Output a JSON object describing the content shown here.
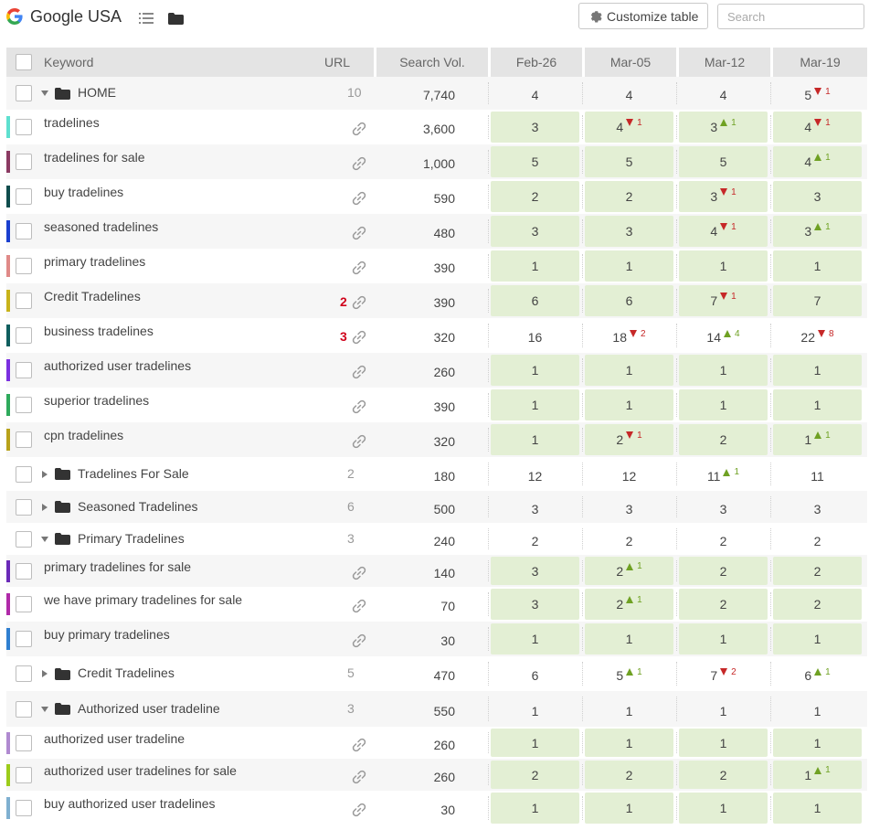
{
  "header": {
    "title": "Google USA",
    "customize_label": "Customize table",
    "search_placeholder": "Search"
  },
  "columns": {
    "keyword": "Keyword",
    "url": "URL",
    "volume": "Search Vol.",
    "dates": [
      "Feb-26",
      "Mar-05",
      "Mar-12",
      "Mar-19"
    ]
  },
  "colors": {
    "rank_highlight": "#e3efd4",
    "up": "#6fa123",
    "down": "#c62828",
    "url_alert": "#d0021b"
  },
  "rows": [
    {
      "type": "group",
      "name": "HOME",
      "expanded": true,
      "url_count": "10",
      "volume": "7,740",
      "ranks": [
        {
          "v": "4"
        },
        {
          "v": "4"
        },
        {
          "v": "4"
        },
        {
          "v": "5",
          "d": "down",
          "c": "1"
        }
      ]
    },
    {
      "type": "kw",
      "name": "tradelines",
      "color": "#5ee0cf",
      "url_count": "",
      "volume": "3,600",
      "hl": true,
      "ranks": [
        {
          "v": "3"
        },
        {
          "v": "4",
          "d": "down",
          "c": "1"
        },
        {
          "v": "3",
          "d": "up",
          "c": "1"
        },
        {
          "v": "4",
          "d": "down",
          "c": "1"
        }
      ]
    },
    {
      "type": "kw",
      "name": "tradelines for sale",
      "color": "#8b3a62",
      "url_count": "",
      "volume": "1,000",
      "hl": true,
      "ranks": [
        {
          "v": "5"
        },
        {
          "v": "5"
        },
        {
          "v": "5"
        },
        {
          "v": "4",
          "d": "up",
          "c": "1"
        }
      ]
    },
    {
      "type": "kw",
      "name": "buy tradelines",
      "color": "#0f4c4c",
      "url_count": "",
      "volume": "590",
      "hl": true,
      "ranks": [
        {
          "v": "2"
        },
        {
          "v": "2"
        },
        {
          "v": "3",
          "d": "down",
          "c": "1"
        },
        {
          "v": "3"
        }
      ]
    },
    {
      "type": "kw",
      "name": "seasoned tradelines",
      "color": "#1a3fcf",
      "url_count": "",
      "volume": "480",
      "hl": true,
      "ranks": [
        {
          "v": "3"
        },
        {
          "v": "3"
        },
        {
          "v": "4",
          "d": "down",
          "c": "1"
        },
        {
          "v": "3",
          "d": "up",
          "c": "1"
        }
      ]
    },
    {
      "type": "kw",
      "name": "primary tradelines",
      "color": "#e08a88",
      "url_count": "",
      "volume": "390",
      "hl": true,
      "ranks": [
        {
          "v": "1"
        },
        {
          "v": "1"
        },
        {
          "v": "1"
        },
        {
          "v": "1"
        }
      ]
    },
    {
      "type": "kw",
      "name": "Credit Tradelines",
      "color": "#c8b31a",
      "url_count": "2",
      "volume": "390",
      "hl": true,
      "ranks": [
        {
          "v": "6"
        },
        {
          "v": "6"
        },
        {
          "v": "7",
          "d": "down",
          "c": "1"
        },
        {
          "v": "7"
        }
      ]
    },
    {
      "type": "kw",
      "name": "business tradelines",
      "color": "#0f5e5e",
      "url_count": "3",
      "volume": "320",
      "hl": false,
      "ranks": [
        {
          "v": "16"
        },
        {
          "v": "18",
          "d": "down",
          "c": "2"
        },
        {
          "v": "14",
          "d": "up",
          "c": "4"
        },
        {
          "v": "22",
          "d": "down",
          "c": "8"
        }
      ]
    },
    {
      "type": "kw",
      "name": "authorized user tradelines",
      "color": "#7b2fe0",
      "url_count": "",
      "volume": "260",
      "hl": true,
      "ranks": [
        {
          "v": "1"
        },
        {
          "v": "1"
        },
        {
          "v": "1"
        },
        {
          "v": "1"
        }
      ]
    },
    {
      "type": "kw",
      "name": "superior tradelines",
      "color": "#2eaa5c",
      "url_count": "",
      "volume": "390",
      "hl": true,
      "ranks": [
        {
          "v": "1"
        },
        {
          "v": "1"
        },
        {
          "v": "1"
        },
        {
          "v": "1"
        }
      ]
    },
    {
      "type": "kw",
      "name": "cpn tradelines",
      "color": "#b8a21a",
      "url_count": "",
      "volume": "320",
      "hl": true,
      "ranks": [
        {
          "v": "1"
        },
        {
          "v": "2",
          "d": "down",
          "c": "1"
        },
        {
          "v": "2"
        },
        {
          "v": "1",
          "d": "up",
          "c": "1"
        }
      ]
    },
    {
      "type": "group",
      "name": "Tradelines For Sale",
      "expanded": false,
      "url_count": "2",
      "volume": "180",
      "ranks": [
        {
          "v": "12"
        },
        {
          "v": "12"
        },
        {
          "v": "11",
          "d": "up",
          "c": "1"
        },
        {
          "v": "11"
        }
      ]
    },
    {
      "type": "group",
      "name": "Seasoned Tradelines",
      "expanded": false,
      "url_count": "6",
      "volume": "500",
      "ranks": [
        {
          "v": "3"
        },
        {
          "v": "3"
        },
        {
          "v": "3"
        },
        {
          "v": "3"
        }
      ]
    },
    {
      "type": "group",
      "name": "Primary Tradelines",
      "expanded": true,
      "url_count": "3",
      "volume": "240",
      "ranks": [
        {
          "v": "2"
        },
        {
          "v": "2"
        },
        {
          "v": "2"
        },
        {
          "v": "2"
        }
      ]
    },
    {
      "type": "kw",
      "name": "primary tradelines for sale",
      "color": "#6a2ab8",
      "url_count": "",
      "volume": "140",
      "hl": true,
      "ranks": [
        {
          "v": "3"
        },
        {
          "v": "2",
          "d": "up",
          "c": "1"
        },
        {
          "v": "2"
        },
        {
          "v": "2"
        }
      ]
    },
    {
      "type": "kw",
      "name": "we have primary tradelines for sale",
      "color": "#b02aa8",
      "url_count": "",
      "volume": "70",
      "hl": true,
      "ranks": [
        {
          "v": "3"
        },
        {
          "v": "2",
          "d": "up",
          "c": "1"
        },
        {
          "v": "2"
        },
        {
          "v": "2"
        }
      ]
    },
    {
      "type": "kw",
      "name": "buy primary tradelines",
      "color": "#2f7fd0",
      "url_count": "",
      "volume": "30",
      "hl": true,
      "ranks": [
        {
          "v": "1"
        },
        {
          "v": "1"
        },
        {
          "v": "1"
        },
        {
          "v": "1"
        }
      ]
    },
    {
      "type": "group",
      "name": "Credit Tradelines",
      "expanded": false,
      "url_count": "5",
      "volume": "470",
      "ranks": [
        {
          "v": "6"
        },
        {
          "v": "5",
          "d": "up",
          "c": "1"
        },
        {
          "v": "7",
          "d": "down",
          "c": "2"
        },
        {
          "v": "6",
          "d": "up",
          "c": "1"
        }
      ]
    },
    {
      "type": "group",
      "name": "Authorized user tradeline",
      "expanded": true,
      "url_count": "3",
      "volume": "550",
      "ranks": [
        {
          "v": "1"
        },
        {
          "v": "1"
        },
        {
          "v": "1"
        },
        {
          "v": "1"
        }
      ]
    },
    {
      "type": "kw",
      "name": "authorized user tradeline",
      "color": "#b08ad0",
      "url_count": "",
      "volume": "260",
      "hl": true,
      "ranks": [
        {
          "v": "1"
        },
        {
          "v": "1"
        },
        {
          "v": "1"
        },
        {
          "v": "1"
        }
      ]
    },
    {
      "type": "kw",
      "name": "authorized user tradelines for sale",
      "color": "#9ccc1a",
      "url_count": "",
      "volume": "260",
      "hl": true,
      "ranks": [
        {
          "v": "2"
        },
        {
          "v": "2"
        },
        {
          "v": "2"
        },
        {
          "v": "1",
          "d": "up",
          "c": "1"
        }
      ]
    },
    {
      "type": "kw",
      "name": "buy authorized user tradelines",
      "color": "#7fb0d0",
      "url_count": "",
      "volume": "30",
      "hl": true,
      "ranks": [
        {
          "v": "1"
        },
        {
          "v": "1"
        },
        {
          "v": "1"
        },
        {
          "v": "1"
        }
      ]
    }
  ]
}
